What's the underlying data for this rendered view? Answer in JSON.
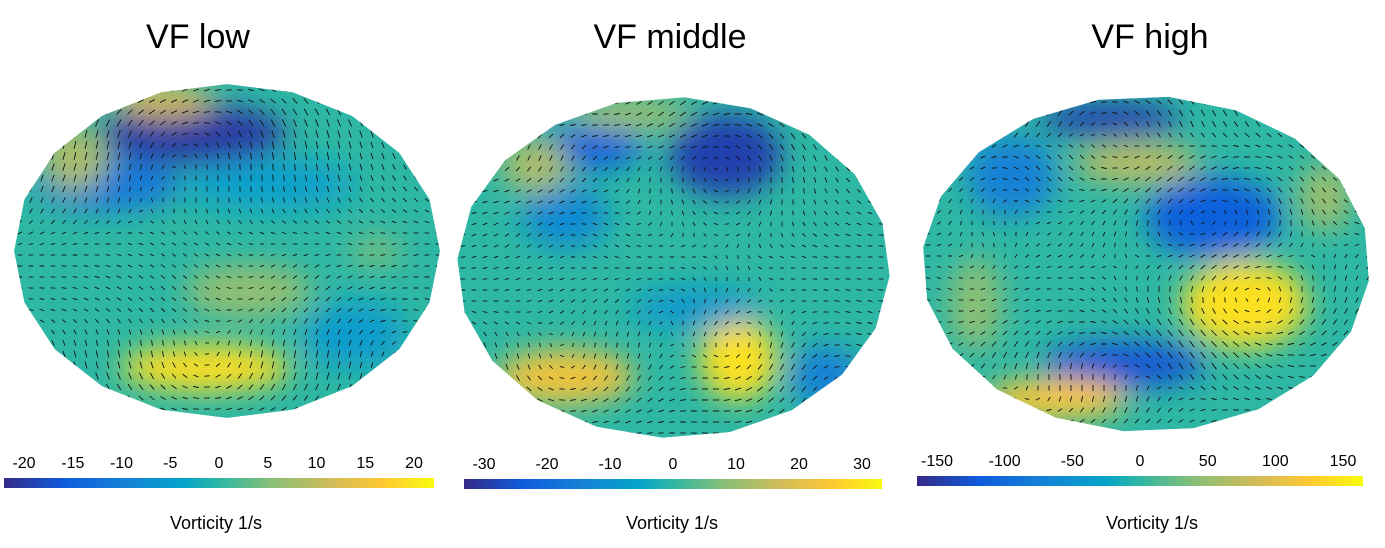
{
  "chart_data": [
    {
      "type": "heatmap",
      "title": "VF low",
      "colorbar_label": "Vorticity 1/s",
      "colorbar_ticks": [
        "-20",
        "-15",
        "-10",
        "-5",
        "0",
        "5",
        "10",
        "15",
        "20"
      ],
      "clim": [
        -22,
        22
      ],
      "blobs": [
        {
          "u": 0.42,
          "v": 0.15,
          "rx": 0.22,
          "ry": 0.09,
          "value": -20
        },
        {
          "u": 0.22,
          "v": 0.3,
          "rx": 0.17,
          "ry": 0.08,
          "value": -11
        },
        {
          "u": 0.35,
          "v": 0.05,
          "rx": 0.12,
          "ry": 0.05,
          "value": 12
        },
        {
          "u": 0.14,
          "v": 0.22,
          "rx": 0.08,
          "ry": 0.1,
          "value": 8
        },
        {
          "u": 0.45,
          "v": 0.85,
          "rx": 0.2,
          "ry": 0.07,
          "value": 19
        },
        {
          "u": 0.55,
          "v": 0.62,
          "rx": 0.15,
          "ry": 0.08,
          "value": 6
        },
        {
          "u": 0.6,
          "v": 0.3,
          "rx": 0.2,
          "ry": 0.08,
          "value": -4
        },
        {
          "u": 0.8,
          "v": 0.75,
          "rx": 0.12,
          "ry": 0.1,
          "value": -5
        },
        {
          "u": 0.85,
          "v": 0.5,
          "rx": 0.06,
          "ry": 0.04,
          "value": 5
        }
      ]
    },
    {
      "type": "heatmap",
      "title": "VF middle",
      "colorbar_label": "Vorticity 1/s",
      "colorbar_ticks": [
        "-30",
        "-20",
        "-10",
        "0",
        "10",
        "20",
        "30"
      ],
      "clim": [
        -32,
        32
      ],
      "blobs": [
        {
          "u": 0.62,
          "v": 0.17,
          "rx": 0.13,
          "ry": 0.12,
          "value": -28
        },
        {
          "u": 0.3,
          "v": 0.15,
          "rx": 0.13,
          "ry": 0.06,
          "value": -22
        },
        {
          "u": 0.25,
          "v": 0.35,
          "rx": 0.1,
          "ry": 0.09,
          "value": -12
        },
        {
          "u": 0.18,
          "v": 0.2,
          "rx": 0.08,
          "ry": 0.08,
          "value": 12
        },
        {
          "u": 0.4,
          "v": 0.05,
          "rx": 0.14,
          "ry": 0.05,
          "value": 10
        },
        {
          "u": 0.65,
          "v": 0.77,
          "rx": 0.09,
          "ry": 0.12,
          "value": 28
        },
        {
          "u": 0.25,
          "v": 0.82,
          "rx": 0.16,
          "ry": 0.08,
          "value": 22
        },
        {
          "u": 0.55,
          "v": 0.62,
          "rx": 0.15,
          "ry": 0.06,
          "value": -8
        },
        {
          "u": 0.85,
          "v": 0.82,
          "rx": 0.08,
          "ry": 0.09,
          "value": -14
        }
      ]
    },
    {
      "type": "heatmap",
      "title": "VF high",
      "colorbar_label": "Vorticity 1/s",
      "colorbar_ticks": [
        "-150",
        "-100",
        "-50",
        "0",
        "50",
        "100",
        "150"
      ],
      "clim": [
        -160,
        160
      ],
      "blobs": [
        {
          "u": 0.42,
          "v": 0.07,
          "rx": 0.16,
          "ry": 0.05,
          "value": -140
        },
        {
          "u": 0.65,
          "v": 0.36,
          "rx": 0.15,
          "ry": 0.12,
          "value": -110
        },
        {
          "u": 0.45,
          "v": 0.8,
          "rx": 0.18,
          "ry": 0.07,
          "value": -120
        },
        {
          "u": 0.2,
          "v": 0.24,
          "rx": 0.1,
          "ry": 0.12,
          "value": -70
        },
        {
          "u": 0.72,
          "v": 0.62,
          "rx": 0.14,
          "ry": 0.13,
          "value": 140
        },
        {
          "u": 0.3,
          "v": 0.9,
          "rx": 0.16,
          "ry": 0.06,
          "value": 120
        },
        {
          "u": 0.48,
          "v": 0.2,
          "rx": 0.14,
          "ry": 0.06,
          "value": 70
        },
        {
          "u": 0.9,
          "v": 0.3,
          "rx": 0.06,
          "ry": 0.1,
          "value": 50
        },
        {
          "u": 0.12,
          "v": 0.62,
          "rx": 0.06,
          "ry": 0.14,
          "value": 40
        }
      ]
    }
  ]
}
